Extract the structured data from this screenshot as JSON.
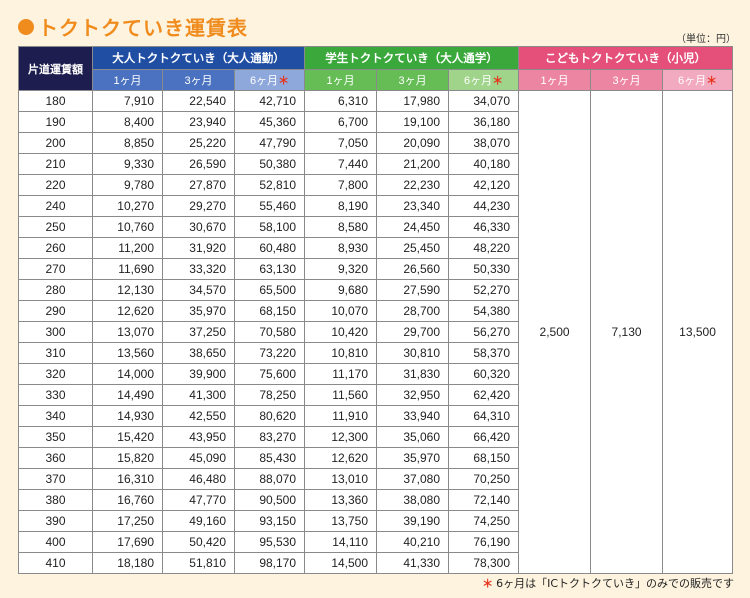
{
  "title": "トクトクていき運賃表",
  "unit_label": "（単位：円）",
  "headers": {
    "distance": "片道運賃額",
    "adult_group": "大人トクトクていき（大人通勤）",
    "student_group": "学生トクトクていき（大人通学）",
    "child_group": "こどもトクトクていき（小児）",
    "m1": "1ヶ月",
    "m3": "3ヶ月",
    "m6": "6ヶ月",
    "star": "＊"
  },
  "rows": [
    {
      "d": "180",
      "a1": "7,910",
      "a3": "22,540",
      "a6": "42,710",
      "s1": "6,310",
      "s3": "17,980",
      "s6": "34,070"
    },
    {
      "d": "190",
      "a1": "8,400",
      "a3": "23,940",
      "a6": "45,360",
      "s1": "6,700",
      "s3": "19,100",
      "s6": "36,180"
    },
    {
      "d": "200",
      "a1": "8,850",
      "a3": "25,220",
      "a6": "47,790",
      "s1": "7,050",
      "s3": "20,090",
      "s6": "38,070"
    },
    {
      "d": "210",
      "a1": "9,330",
      "a3": "26,590",
      "a6": "50,380",
      "s1": "7,440",
      "s3": "21,200",
      "s6": "40,180"
    },
    {
      "d": "220",
      "a1": "9,780",
      "a3": "27,870",
      "a6": "52,810",
      "s1": "7,800",
      "s3": "22,230",
      "s6": "42,120"
    },
    {
      "d": "240",
      "a1": "10,270",
      "a3": "29,270",
      "a6": "55,460",
      "s1": "8,190",
      "s3": "23,340",
      "s6": "44,230"
    },
    {
      "d": "250",
      "a1": "10,760",
      "a3": "30,670",
      "a6": "58,100",
      "s1": "8,580",
      "s3": "24,450",
      "s6": "46,330"
    },
    {
      "d": "260",
      "a1": "11,200",
      "a3": "31,920",
      "a6": "60,480",
      "s1": "8,930",
      "s3": "25,450",
      "s6": "48,220"
    },
    {
      "d": "270",
      "a1": "11,690",
      "a3": "33,320",
      "a6": "63,130",
      "s1": "9,320",
      "s3": "26,560",
      "s6": "50,330"
    },
    {
      "d": "280",
      "a1": "12,130",
      "a3": "34,570",
      "a6": "65,500",
      "s1": "9,680",
      "s3": "27,590",
      "s6": "52,270"
    },
    {
      "d": "290",
      "a1": "12,620",
      "a3": "35,970",
      "a6": "68,150",
      "s1": "10,070",
      "s3": "28,700",
      "s6": "54,380"
    },
    {
      "d": "300",
      "a1": "13,070",
      "a3": "37,250",
      "a6": "70,580",
      "s1": "10,420",
      "s3": "29,700",
      "s6": "56,270"
    },
    {
      "d": "310",
      "a1": "13,560",
      "a3": "38,650",
      "a6": "73,220",
      "s1": "10,810",
      "s3": "30,810",
      "s6": "58,370"
    },
    {
      "d": "320",
      "a1": "14,000",
      "a3": "39,900",
      "a6": "75,600",
      "s1": "11,170",
      "s3": "31,830",
      "s6": "60,320"
    },
    {
      "d": "330",
      "a1": "14,490",
      "a3": "41,300",
      "a6": "78,250",
      "s1": "11,560",
      "s3": "32,950",
      "s6": "62,420"
    },
    {
      "d": "340",
      "a1": "14,930",
      "a3": "42,550",
      "a6": "80,620",
      "s1": "11,910",
      "s3": "33,940",
      "s6": "64,310"
    },
    {
      "d": "350",
      "a1": "15,420",
      "a3": "43,950",
      "a6": "83,270",
      "s1": "12,300",
      "s3": "35,060",
      "s6": "66,420"
    },
    {
      "d": "360",
      "a1": "15,820",
      "a3": "45,090",
      "a6": "85,430",
      "s1": "12,620",
      "s3": "35,970",
      "s6": "68,150"
    },
    {
      "d": "370",
      "a1": "16,310",
      "a3": "46,480",
      "a6": "88,070",
      "s1": "13,010",
      "s3": "37,080",
      "s6": "70,250"
    },
    {
      "d": "380",
      "a1": "16,760",
      "a3": "47,770",
      "a6": "90,500",
      "s1": "13,360",
      "s3": "38,080",
      "s6": "72,140"
    },
    {
      "d": "390",
      "a1": "17,250",
      "a3": "49,160",
      "a6": "93,150",
      "s1": "13,750",
      "s3": "39,190",
      "s6": "74,250"
    },
    {
      "d": "400",
      "a1": "17,690",
      "a3": "50,420",
      "a6": "95,530",
      "s1": "14,110",
      "s3": "40,210",
      "s6": "76,190"
    },
    {
      "d": "410",
      "a1": "18,180",
      "a3": "51,810",
      "a6": "98,170",
      "s1": "14,500",
      "s3": "41,330",
      "s6": "78,300"
    }
  ],
  "child_values": {
    "c1": "2,500",
    "c3": "7,130",
    "c6": "13,500"
  },
  "footnote": {
    "star": "＊",
    "text": "6ヶ月は「ICトクトクていき」のみでの販売です"
  },
  "colors": {
    "title": "#f08c1e",
    "adult": "#1f4ea3",
    "student": "#3aa83a",
    "child": "#e4507a",
    "background": "#fdf3df"
  }
}
